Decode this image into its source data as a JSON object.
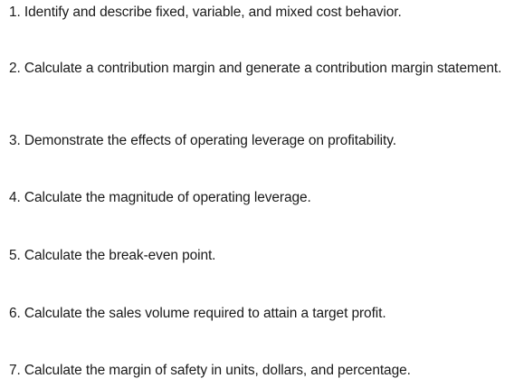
{
  "objectives": [
    "1. Identify and describe fixed, variable, and mixed cost behavior.",
    "2. Calculate a contribution margin and generate a contribution margin statement.",
    "3. Demonstrate the effects of operating leverage on profitability.",
    "4. Calculate the magnitude of operating leverage.",
    "5. Calculate the break-even point.",
    "6. Calculate the sales volume required to attain a target profit.",
    "7. Calculate the margin of safety in units, dollars, and percentage."
  ]
}
